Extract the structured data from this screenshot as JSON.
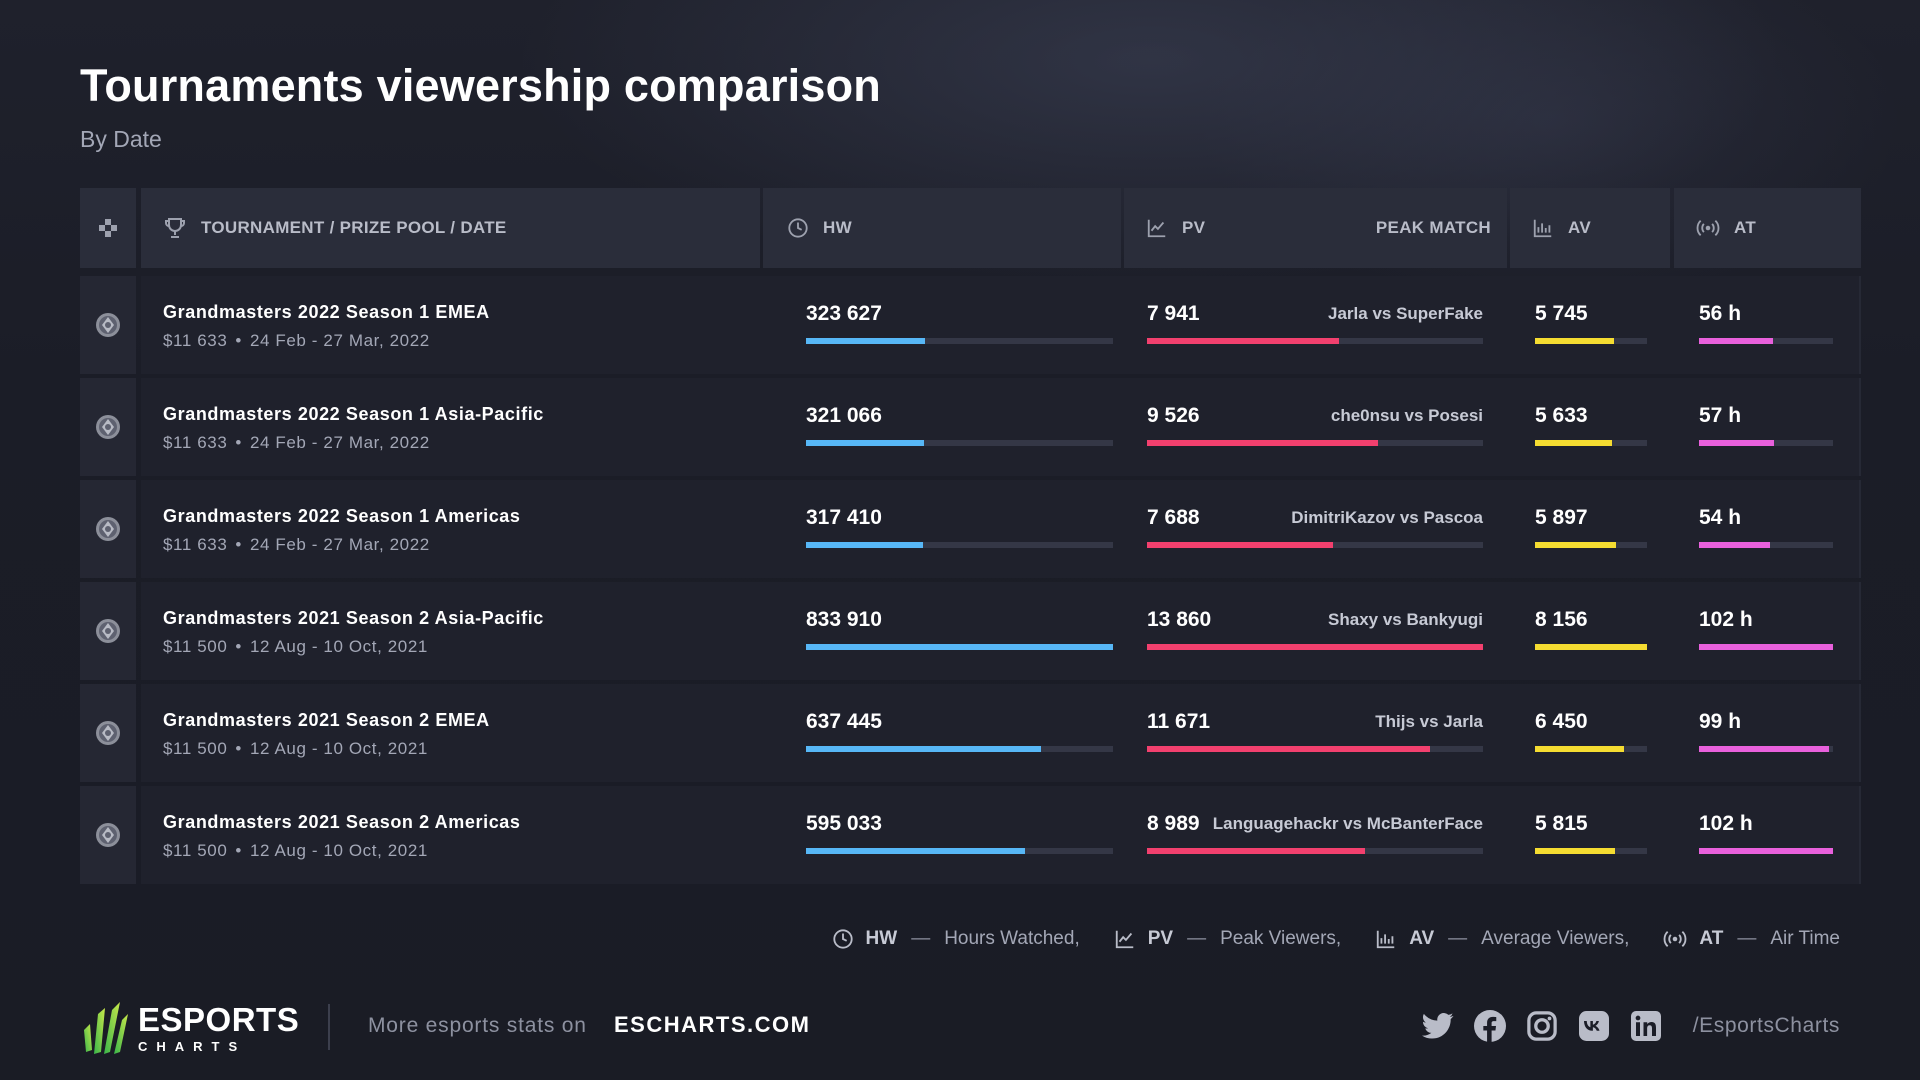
{
  "header": {
    "title": "Tournaments viewership comparison",
    "subtitle": "By Date"
  },
  "table": {
    "columns": {
      "tournament": "TOURNAMENT / PRIZE POOL / DATE",
      "hw": "HW",
      "pv": "PV",
      "peak_match": "PEAK MATCH",
      "av": "AV",
      "at": "AT"
    },
    "rows": [
      {
        "name": "Grandmasters 2022 Season 1 EMEA",
        "prize": "$11 633",
        "date": "24 Feb - 27 Mar, 2022",
        "hw": "323 627",
        "pv": "7 941",
        "match": "Jarla vs SuperFake",
        "av": "5 745",
        "at": "56 h"
      },
      {
        "name": "Grandmasters 2022 Season 1 Asia-Pacific",
        "prize": "$11 633",
        "date": "24 Feb - 27 Mar, 2022",
        "hw": "321 066",
        "pv": "9 526",
        "match": "che0nsu vs Posesi",
        "av": "5 633",
        "at": "57 h"
      },
      {
        "name": "Grandmasters 2022 Season 1 Americas",
        "prize": "$11 633",
        "date": "24 Feb - 27 Mar, 2022",
        "hw": "317 410",
        "pv": "7 688",
        "match": "DimitriKazov vs Pascoa",
        "av": "5 897",
        "at": "54 h"
      },
      {
        "name": "Grandmasters 2021 Season 2 Asia-Pacific",
        "prize": "$11 500",
        "date": "12 Aug - 10 Oct, 2021",
        "hw": "833 910",
        "pv": "13 860",
        "match": "Shaxy vs Bankyugi",
        "av": "8 156",
        "at": "102 h"
      },
      {
        "name": "Grandmasters 2021 Season 2 EMEA",
        "prize": "$11 500",
        "date": "12 Aug - 10 Oct, 2021",
        "hw": "637 445",
        "pv": "11 671",
        "match": "Thijs vs Jarla",
        "av": "6 450",
        "at": "99 h"
      },
      {
        "name": "Grandmasters 2021 Season 2 Americas",
        "prize": "$11 500",
        "date": "12 Aug - 10 Oct, 2021",
        "hw": "595 033",
        "pv": "8 989",
        "match": "Languagehackr vs McBanterFace",
        "av": "5 815",
        "at": "102 h"
      }
    ]
  },
  "legend": {
    "hw_abbr": "HW",
    "hw_text": "Hours Watched,",
    "pv_abbr": "PV",
    "pv_text": "Peak Viewers,",
    "av_abbr": "AV",
    "av_text": "Average Viewers,",
    "at_abbr": "AT",
    "at_text": "Air Time",
    "dash": "—"
  },
  "footer": {
    "logo_top": "ESPORTS",
    "logo_bottom": "CHARTS",
    "more_text": "More esports stats on",
    "more_link": "ESCHARTS.COM",
    "handle": "/EsportsCharts",
    "socials": [
      "twitter-icon",
      "facebook-icon",
      "instagram-icon",
      "vk-icon",
      "linkedin-icon"
    ]
  },
  "colors": {
    "hw": "#57b7f6",
    "pv": "#f2406e",
    "av": "#f5dc31",
    "at": "#e860dc"
  }
}
